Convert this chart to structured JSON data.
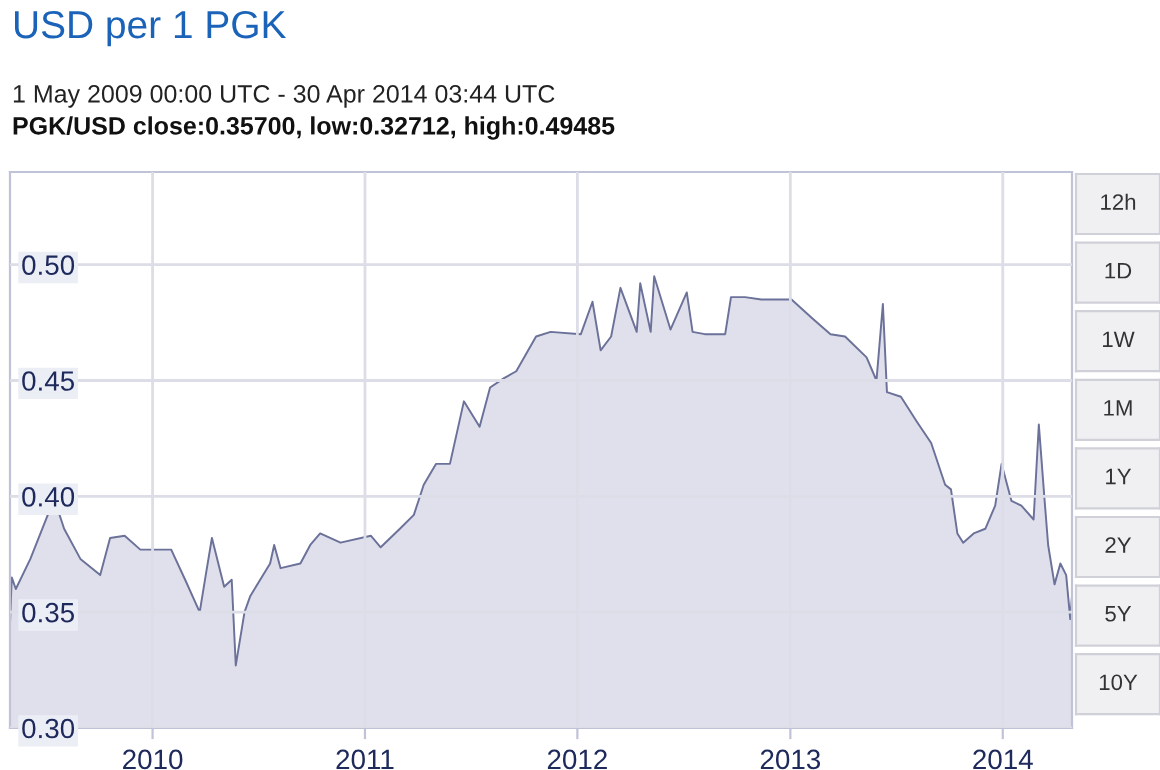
{
  "chart_data": {
    "type": "area",
    "title": "USD per 1 PGK",
    "subtitle": "1 May 2009 00:00 UTC - 30 Apr 2014 03:44 UTC",
    "annotations": [
      "PGK/USD close:0.35700, low:0.32712, high:0.49485",
      "12h",
      "1D",
      "1W",
      "1M",
      "1Y",
      "2Y",
      "5Y",
      "10Y"
    ],
    "x": [
      "2009-05-01",
      "2009-05-04",
      "2009-05-11",
      "2009-06-05",
      "2009-07-16",
      "2009-08-02",
      "2009-08-30",
      "2009-10-03",
      "2009-10-20",
      "2009-11-14",
      "2009-12-11",
      "2010-02-02",
      "2010-02-26",
      "2010-03-23",
      "2010-04-03",
      "2010-04-13",
      "2010-05-04",
      "2010-05-17",
      "2010-05-24",
      "2010-06-08",
      "2010-06-18",
      "2010-07-22",
      "2010-07-29",
      "2010-08-09",
      "2010-09-12",
      "2010-09-29",
      "2010-10-16",
      "2010-11-20",
      "2011-01-11",
      "2011-01-28",
      "2011-03-02",
      "2011-03-26",
      "2011-04-12",
      "2011-05-03",
      "2011-05-27",
      "2011-06-20",
      "2011-07-17",
      "2011-08-04",
      "2011-08-28",
      "2011-09-18",
      "2011-10-22",
      "2011-11-16",
      "2012-01-07",
      "2012-01-27",
      "2012-02-10",
      "2012-02-28",
      "2012-03-15",
      "2012-04-12",
      "2012-04-18",
      "2012-05-06",
      "2012-05-12",
      "2012-06-09",
      "2012-07-07",
      "2012-07-17",
      "2012-08-07",
      "2012-09-11",
      "2012-09-21",
      "2012-10-15",
      "2012-11-12",
      "2013-01-03",
      "2013-02-07",
      "2013-03-11",
      "2013-04-05",
      "2013-05-12",
      "2013-05-29",
      "2013-06-09",
      "2013-06-16",
      "2013-07-10",
      "2013-08-07",
      "2013-08-31",
      "2013-09-24",
      "2013-10-04",
      "2013-10-15",
      "2013-10-25",
      "2013-11-12",
      "2013-12-02",
      "2013-12-19",
      "2013-12-30",
      "2014-01-16",
      "2014-02-02",
      "2014-02-23",
      "2014-03-04",
      "2014-03-14",
      "2014-03-20",
      "2014-03-31",
      "2014-04-10",
      "2014-04-20",
      "2014-04-27",
      "2014-04-30"
    ],
    "series": [
      {
        "color": "#6b7199",
        "values": [
          0.345,
          0.365,
          0.36,
          0.373,
          0.399,
          0.386,
          0.373,
          0.366,
          0.382,
          0.383,
          0.377,
          0.377,
          0.364,
          0.35,
          0.367,
          0.382,
          0.361,
          0.364,
          0.327,
          0.35,
          0.357,
          0.371,
          0.379,
          0.369,
          0.371,
          0.379,
          0.384,
          0.38,
          0.383,
          0.378,
          0.386,
          0.392,
          0.405,
          0.414,
          0.414,
          0.441,
          0.43,
          0.447,
          0.451,
          0.454,
          0.469,
          0.471,
          0.47,
          0.484,
          0.463,
          0.469,
          0.49,
          0.471,
          0.492,
          0.471,
          0.495,
          0.472,
          0.488,
          0.471,
          0.47,
          0.47,
          0.486,
          0.486,
          0.485,
          0.485,
          0.477,
          0.47,
          0.469,
          0.46,
          0.45,
          0.483,
          0.445,
          0.443,
          0.432,
          0.423,
          0.405,
          0.403,
          0.384,
          0.38,
          0.384,
          0.386,
          0.396,
          0.414,
          0.398,
          0.396,
          0.39,
          0.431,
          0.398,
          0.379,
          0.362,
          0.371,
          0.366,
          0.347,
          0.357
        ]
      }
    ],
    "xlim": [
      "2009-05-01",
      "2014-04-30"
    ],
    "ylim": [
      0.3,
      0.54
    ],
    "xticks": [
      {
        "value": "2010-01-01",
        "label": "2010"
      },
      {
        "value": "2011-01-01",
        "label": "2011"
      },
      {
        "value": "2012-01-01",
        "label": "2012"
      },
      {
        "value": "2013-01-01",
        "label": "2013"
      },
      {
        "value": "2014-01-01",
        "label": "2014"
      }
    ],
    "yticks": [
      {
        "value": 0.3,
        "label": "0.30"
      },
      {
        "value": 0.35,
        "label": "0.35"
      },
      {
        "value": 0.4,
        "label": "0.40"
      },
      {
        "value": 0.45,
        "label": "0.45"
      },
      {
        "value": 0.5,
        "label": "0.50"
      }
    ],
    "grid": true
  }
}
